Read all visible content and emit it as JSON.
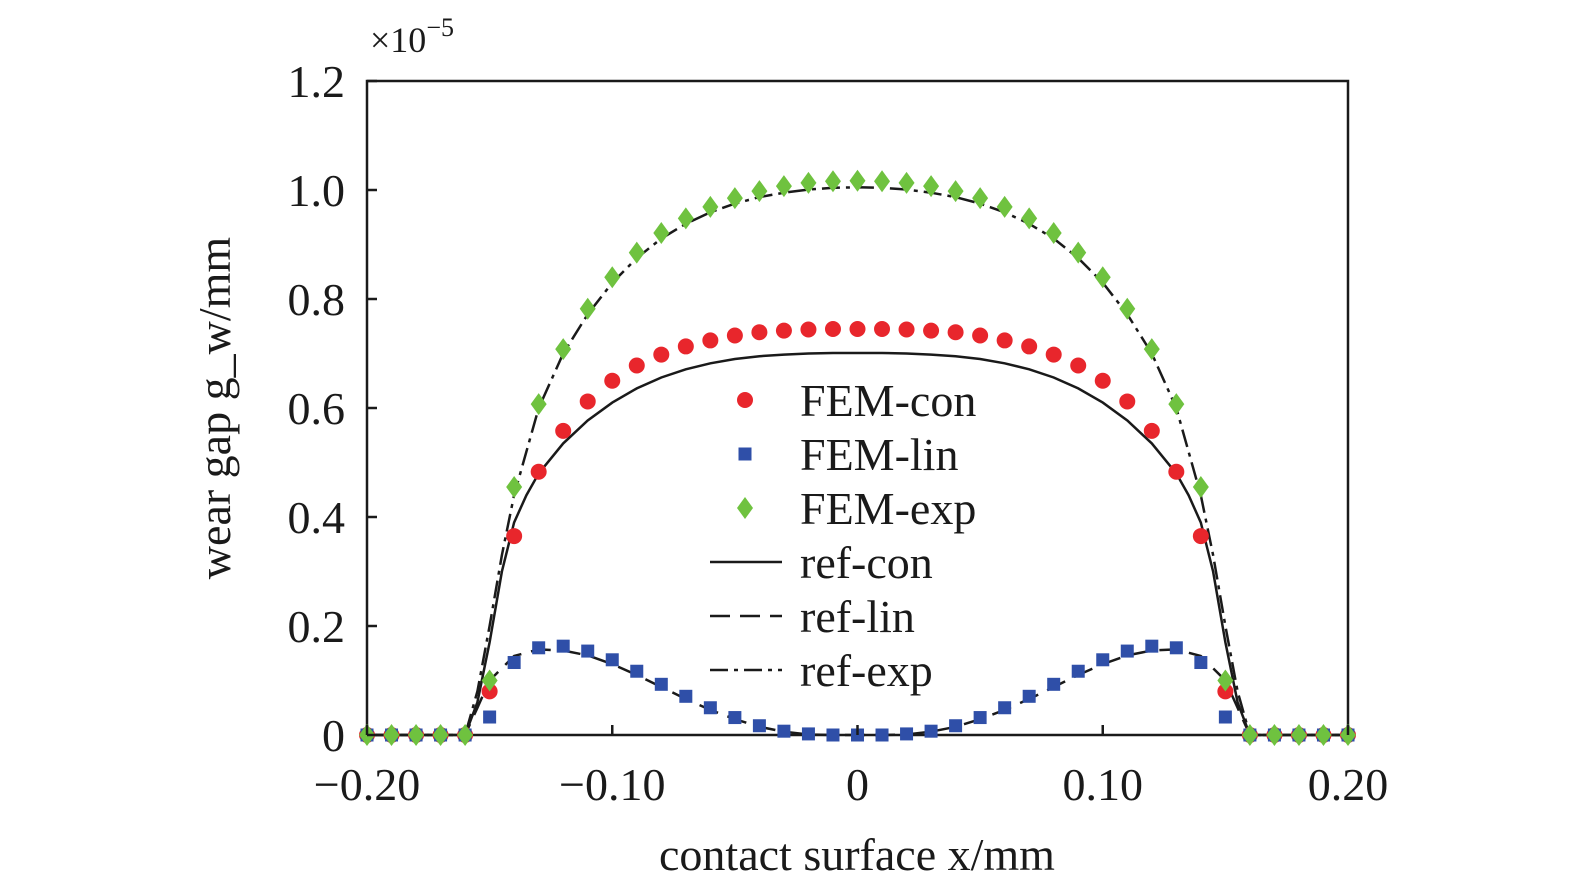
{
  "chart_data": {
    "type": "scatter",
    "xlabel": "contact surface x/mm",
    "ylabel": "wear gap g_w/mm",
    "y_scale_label": "×10",
    "y_scale_exponent": "−5",
    "xlim": [
      -0.2,
      0.2
    ],
    "ylim": [
      0,
      1.2
    ],
    "grid": false,
    "legend_position": "center",
    "x_ticks": [
      {
        "value": -0.2,
        "label": "−0.20"
      },
      {
        "value": -0.1,
        "label": "−0.10"
      },
      {
        "value": 0,
        "label": "0"
      },
      {
        "value": 0.1,
        "label": "0.10"
      },
      {
        "value": 0.2,
        "label": "0.20"
      }
    ],
    "y_ticks": [
      {
        "value": 0,
        "label": "0"
      },
      {
        "value": 0.2,
        "label": "0.2"
      },
      {
        "value": 0.4,
        "label": "0.4"
      },
      {
        "value": 0.6,
        "label": "0.6"
      },
      {
        "value": 0.8,
        "label": "0.8"
      },
      {
        "value": 1.0,
        "label": "1.0"
      },
      {
        "value": 1.2,
        "label": "1.2"
      }
    ],
    "x": [
      -0.2,
      -0.19,
      -0.18,
      -0.17,
      -0.16,
      -0.15,
      -0.14,
      -0.13,
      -0.12,
      -0.11,
      -0.1,
      -0.09,
      -0.08,
      -0.07,
      -0.06,
      -0.05,
      -0.04,
      -0.03,
      -0.02,
      -0.01,
      0.0,
      0.01,
      0.02,
      0.03,
      0.04,
      0.05,
      0.06,
      0.07,
      0.08,
      0.09,
      0.1,
      0.11,
      0.12,
      0.13,
      0.14,
      0.15,
      0.16,
      0.17,
      0.18,
      0.19,
      0.2
    ],
    "series": [
      {
        "name": "FEM-con",
        "kind": "marker",
        "marker": "circle",
        "color": "#e8262c",
        "values": [
          0,
          0,
          0,
          0,
          0,
          0.08,
          0.365,
          0.483,
          0.558,
          0.612,
          0.65,
          0.678,
          0.698,
          0.713,
          0.724,
          0.733,
          0.739,
          0.742,
          0.744,
          0.745,
          0.745,
          0.745,
          0.744,
          0.742,
          0.739,
          0.733,
          0.724,
          0.713,
          0.698,
          0.678,
          0.65,
          0.612,
          0.558,
          0.483,
          0.365,
          0.08,
          0,
          0,
          0,
          0,
          0
        ]
      },
      {
        "name": "FEM-lin",
        "kind": "marker",
        "marker": "square",
        "color": "#2f4fa8",
        "values": [
          0,
          0,
          0,
          0,
          0,
          0.033,
          0.133,
          0.16,
          0.163,
          0.154,
          0.138,
          0.117,
          0.093,
          0.071,
          0.05,
          0.032,
          0.017,
          0.007,
          0.002,
          0.0,
          0.0,
          0.0,
          0.002,
          0.007,
          0.017,
          0.032,
          0.05,
          0.071,
          0.093,
          0.117,
          0.138,
          0.154,
          0.163,
          0.16,
          0.133,
          0.033,
          0,
          0,
          0,
          0,
          0
        ]
      },
      {
        "name": "FEM-exp",
        "kind": "marker",
        "marker": "diamond",
        "color": "#6fc23f",
        "values": [
          0,
          0,
          0,
          0,
          0,
          0.1,
          0.455,
          0.607,
          0.708,
          0.782,
          0.84,
          0.885,
          0.921,
          0.948,
          0.969,
          0.985,
          0.998,
          1.007,
          1.013,
          1.016,
          1.017,
          1.016,
          1.013,
          1.007,
          0.998,
          0.985,
          0.969,
          0.948,
          0.921,
          0.885,
          0.84,
          0.782,
          0.708,
          0.607,
          0.455,
          0.1,
          0,
          0,
          0,
          0,
          0
        ]
      },
      {
        "name": "ref-con",
        "kind": "line",
        "dash": "",
        "color": "#1a1a1a",
        "x": [
          -0.2,
          -0.16,
          -0.155,
          -0.15,
          -0.145,
          -0.14,
          -0.135,
          -0.13,
          -0.12,
          -0.11,
          -0.1,
          -0.09,
          -0.08,
          -0.07,
          -0.06,
          -0.05,
          -0.04,
          -0.03,
          -0.02,
          -0.01,
          0,
          0.01,
          0.02,
          0.03,
          0.04,
          0.05,
          0.06,
          0.07,
          0.08,
          0.09,
          0.1,
          0.11,
          0.12,
          0.13,
          0.135,
          0.14,
          0.145,
          0.15,
          0.155,
          0.16,
          0.2
        ],
        "values": [
          0,
          0,
          0.06,
          0.17,
          0.3,
          0.39,
          0.44,
          0.48,
          0.535,
          0.577,
          0.61,
          0.636,
          0.656,
          0.671,
          0.682,
          0.69,
          0.695,
          0.698,
          0.7,
          0.701,
          0.701,
          0.701,
          0.7,
          0.698,
          0.695,
          0.69,
          0.682,
          0.671,
          0.656,
          0.636,
          0.61,
          0.577,
          0.535,
          0.48,
          0.44,
          0.39,
          0.3,
          0.17,
          0.06,
          0,
          0
        ]
      },
      {
        "name": "ref-lin",
        "kind": "line",
        "dash": "20 10",
        "color": "#1a1a1a",
        "x": [
          -0.2,
          -0.16,
          -0.155,
          -0.15,
          -0.14,
          -0.13,
          -0.12,
          -0.11,
          -0.1,
          -0.09,
          -0.08,
          -0.07,
          -0.06,
          -0.05,
          -0.04,
          -0.03,
          -0.02,
          -0.01,
          0,
          0.01,
          0.02,
          0.03,
          0.04,
          0.05,
          0.06,
          0.07,
          0.08,
          0.09,
          0.1,
          0.11,
          0.12,
          0.13,
          0.14,
          0.15,
          0.155,
          0.16,
          0.2
        ],
        "values": [
          0,
          0,
          0.05,
          0.1,
          0.145,
          0.157,
          0.155,
          0.146,
          0.13,
          0.11,
          0.088,
          0.066,
          0.046,
          0.029,
          0.015,
          0.006,
          0.001,
          0,
          0,
          0,
          0.001,
          0.006,
          0.015,
          0.029,
          0.046,
          0.066,
          0.088,
          0.11,
          0.13,
          0.146,
          0.155,
          0.157,
          0.145,
          0.1,
          0.05,
          0,
          0
        ]
      },
      {
        "name": "ref-exp",
        "kind": "line",
        "dash": "18 6 4 6",
        "color": "#1a1a1a",
        "x": [
          -0.2,
          -0.16,
          -0.155,
          -0.15,
          -0.145,
          -0.14,
          -0.13,
          -0.12,
          -0.11,
          -0.1,
          -0.09,
          -0.08,
          -0.07,
          -0.06,
          -0.05,
          -0.04,
          -0.03,
          -0.02,
          -0.01,
          0,
          0.01,
          0.02,
          0.03,
          0.04,
          0.05,
          0.06,
          0.07,
          0.08,
          0.09,
          0.1,
          0.11,
          0.12,
          0.13,
          0.14,
          0.145,
          0.15,
          0.155,
          0.16,
          0.2
        ],
        "values": [
          0,
          0,
          0.08,
          0.2,
          0.33,
          0.44,
          0.6,
          0.7,
          0.772,
          0.83,
          0.875,
          0.911,
          0.938,
          0.959,
          0.975,
          0.987,
          0.995,
          1.001,
          1.004,
          1.005,
          1.004,
          1.001,
          0.995,
          0.987,
          0.975,
          0.959,
          0.938,
          0.911,
          0.875,
          0.83,
          0.772,
          0.7,
          0.6,
          0.44,
          0.33,
          0.2,
          0.08,
          0,
          0
        ]
      }
    ]
  }
}
